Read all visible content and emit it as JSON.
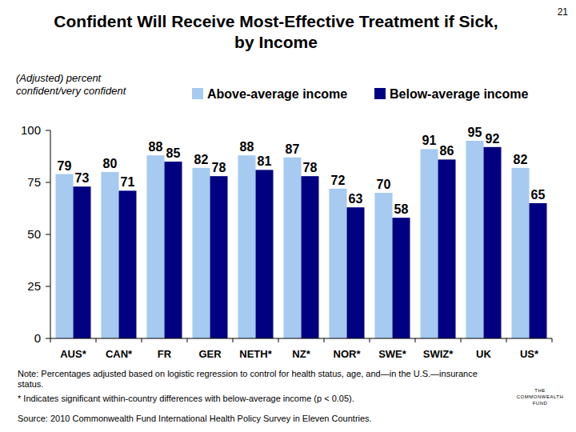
{
  "chart_data": {
    "type": "bar",
    "title": "Confident Will Receive Most-Effective Treatment if Sick, by Income",
    "y_label": "(Adjusted) percent confident/very confident",
    "categories": [
      "AUS*",
      "CAN*",
      "FR",
      "GER",
      "NETH*",
      "NZ*",
      "NOR*",
      "SWE*",
      "SWIZ*",
      "UK",
      "US*"
    ],
    "series": [
      {
        "name": "Above-average income",
        "color": "#a6caf0",
        "values": [
          79,
          80,
          88,
          82,
          88,
          87,
          72,
          70,
          91,
          95,
          82
        ]
      },
      {
        "name": "Below-average income",
        "color": "#000080",
        "values": [
          73,
          71,
          85,
          78,
          81,
          78,
          63,
          58,
          86,
          92,
          65
        ]
      }
    ],
    "ylim": [
      0,
      100
    ],
    "yticks": [
      0,
      25,
      50,
      75,
      100
    ],
    "grid": false,
    "legend": "top",
    "data_labels": true
  },
  "page_number": "21",
  "note": "Note: Percentages adjusted based on logistic regression to control for health status, age, and—in the U.S.—insurance status.",
  "footnote": "* Indicates significant within-country differences with below-average income (p < 0.05).",
  "source": "Source: 2010 Commonwealth Fund International Health Policy Survey in Eleven Countries.",
  "logo": [
    "THE",
    "COMMONWEALTH",
    "FUND"
  ]
}
